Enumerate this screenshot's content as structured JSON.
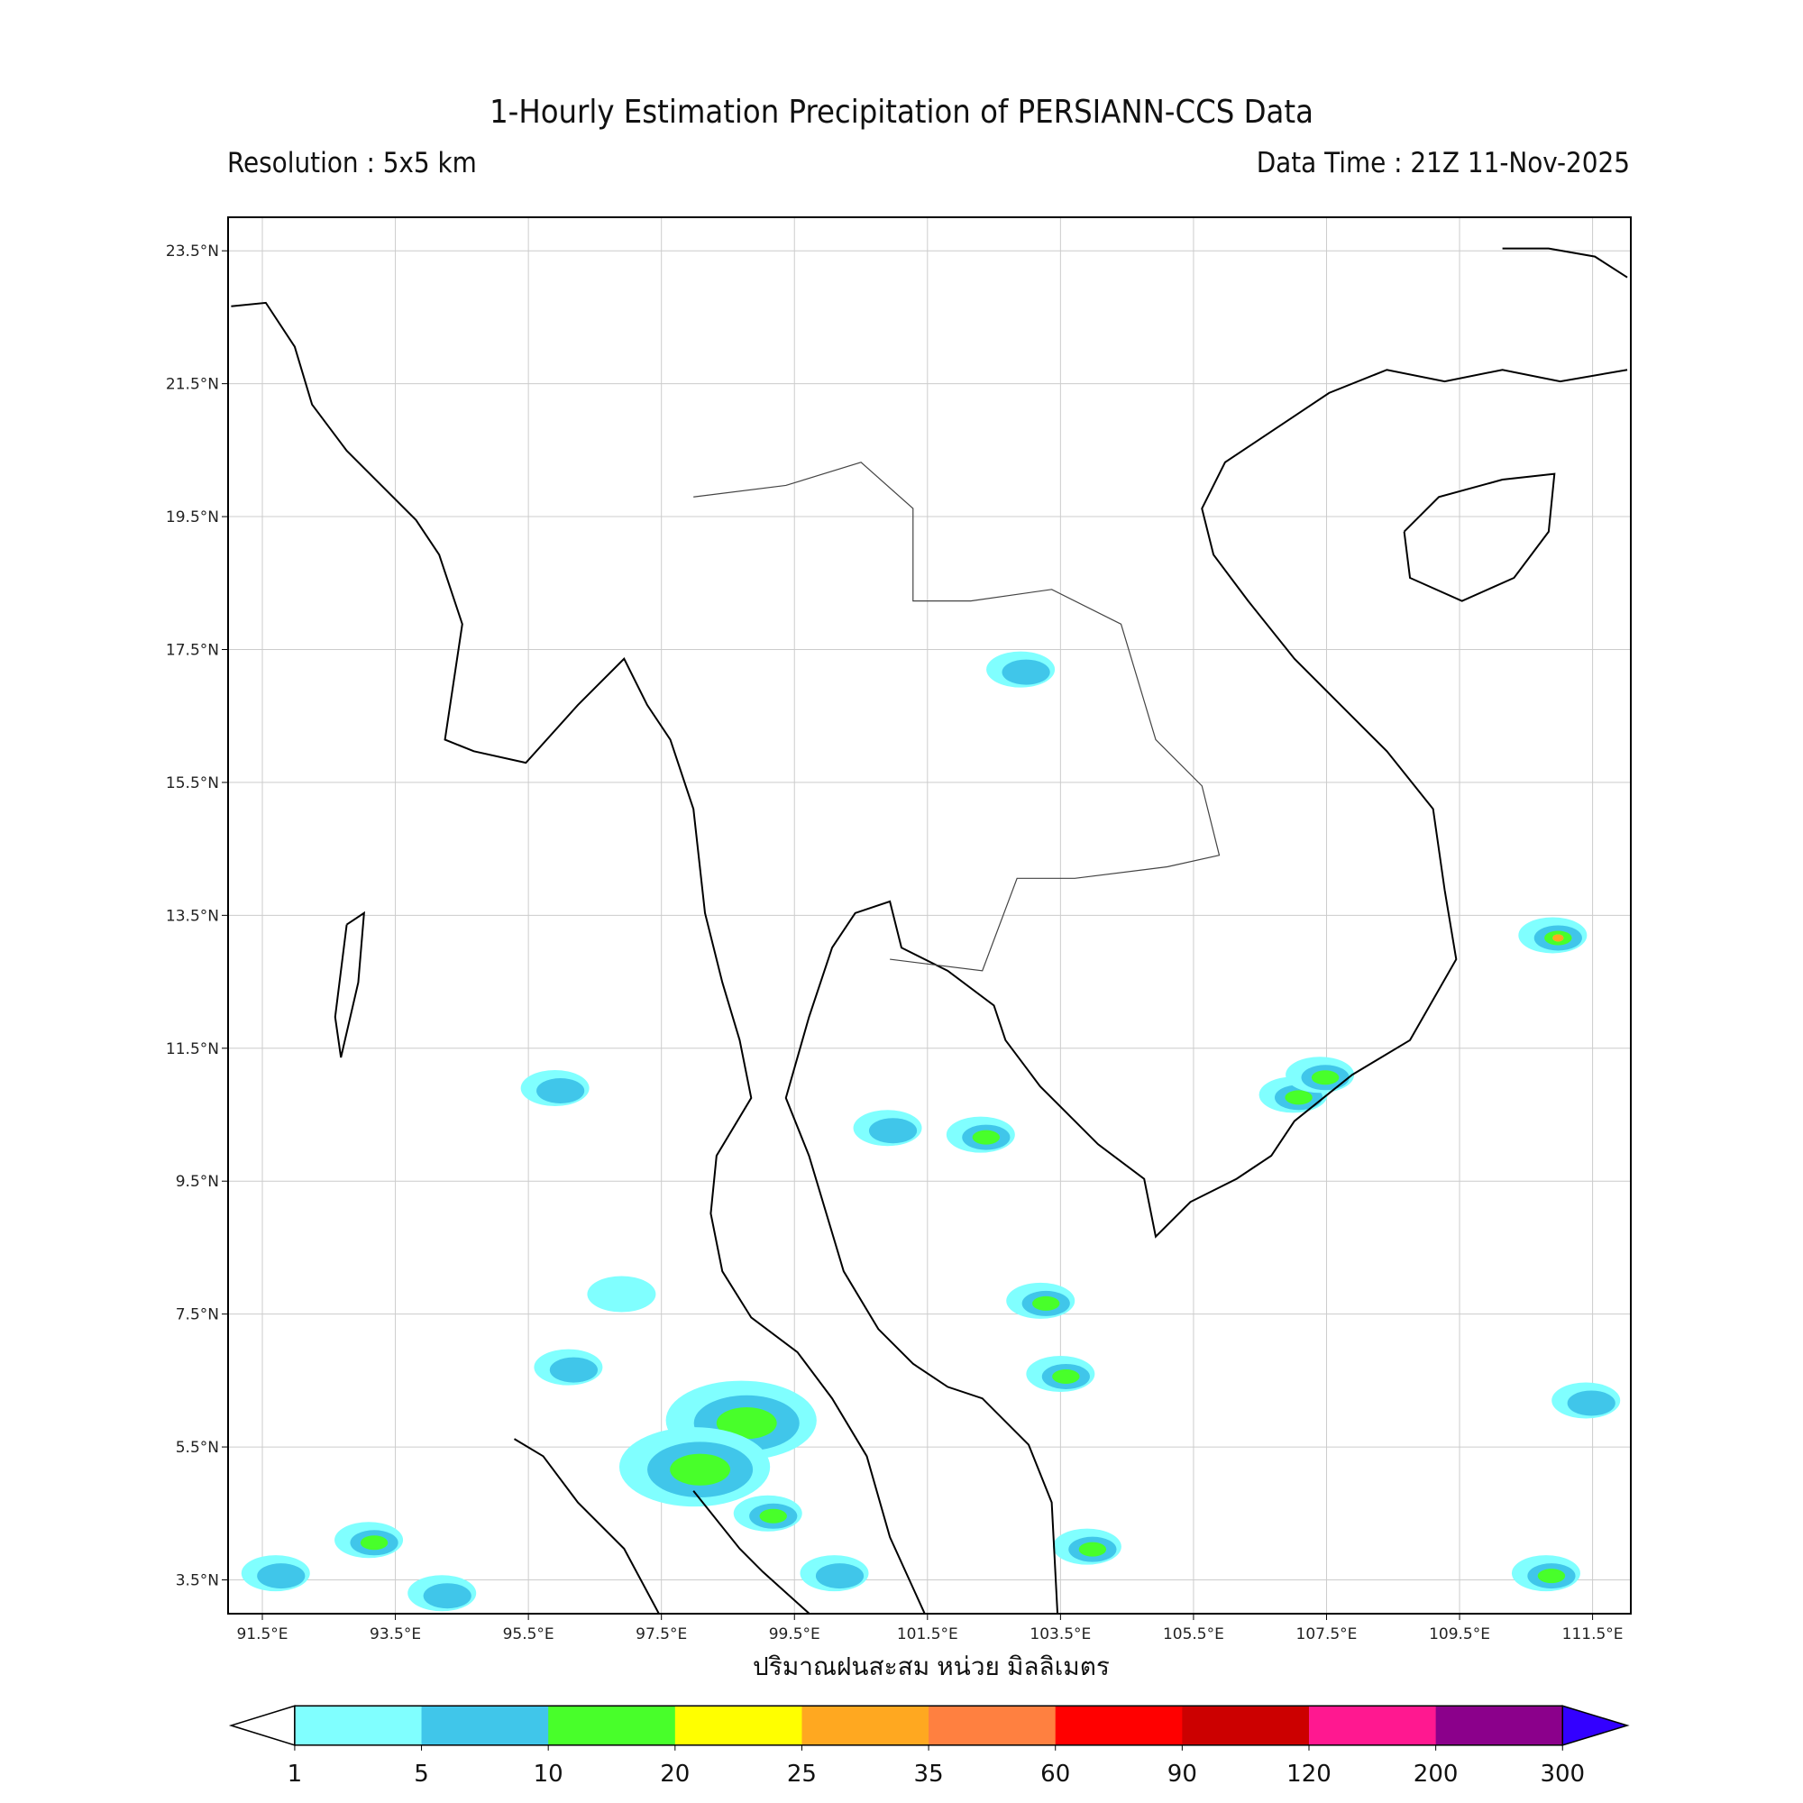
{
  "header": {
    "title": "1-Hourly Estimation Precipitation of PERSIANN-CCS Data",
    "resolution": "Resolution : 5x5 km",
    "data_time": "Data Time : 21Z 11-Nov-2025"
  },
  "chart_data": {
    "type": "heatmap",
    "title": "1-Hourly Estimation Precipitation of PERSIANN-CCS Data",
    "xlabel": "ปริมาณฝนสะสม หน่วย มิลลิเมตร",
    "lon_range": [
      91.0,
      112.1
    ],
    "lat_range": [
      3.0,
      24.0
    ],
    "grid": true,
    "lon_ticks": [
      "91.5°E",
      "93.5°E",
      "95.5°E",
      "97.5°E",
      "99.5°E",
      "101.5°E",
      "103.5°E",
      "105.5°E",
      "107.5°E",
      "109.5°E",
      "111.5°E"
    ],
    "lon_tick_values": [
      91.5,
      93.5,
      95.5,
      97.5,
      99.5,
      101.5,
      103.5,
      105.5,
      107.5,
      109.5,
      111.5
    ],
    "lat_ticks": [
      "23.5°N",
      "21.5°N",
      "19.5°N",
      "17.5°N",
      "15.5°N",
      "13.5°N",
      "11.5°N",
      "9.5°N",
      "7.5°N",
      "5.5°N",
      "3.5°N"
    ],
    "lat_tick_values": [
      23.5,
      21.5,
      19.5,
      17.5,
      15.5,
      13.5,
      11.5,
      9.5,
      7.5,
      5.5,
      3.5
    ],
    "colorbar": {
      "levels": [
        "1",
        "5",
        "10",
        "20",
        "25",
        "35",
        "60",
        "90",
        "120",
        "200",
        "300"
      ],
      "colors": [
        "#80ffff",
        "#40c6ea",
        "#48ff2a",
        "#ffff00",
        "#ffa820",
        "#ff8040",
        "#ff0000",
        "#cc0000",
        "#ff1890",
        "#8b008b"
      ],
      "over_color": "#3300ff",
      "under_color": "#ffffff"
    },
    "precip_cells": [
      {
        "lon": 98.7,
        "lat": 5.9,
        "max_class": 2
      },
      {
        "lon": 98.0,
        "lat": 5.2,
        "max_class": 2
      },
      {
        "lon": 99.1,
        "lat": 4.5,
        "max_class": 2
      },
      {
        "lon": 100.1,
        "lat": 3.6,
        "max_class": 1
      },
      {
        "lon": 107.0,
        "lat": 10.8,
        "max_class": 2
      },
      {
        "lon": 107.4,
        "lat": 11.1,
        "max_class": 2
      },
      {
        "lon": 102.3,
        "lat": 10.2,
        "max_class": 2
      },
      {
        "lon": 100.9,
        "lat": 10.3,
        "max_class": 1
      },
      {
        "lon": 91.7,
        "lat": 3.6,
        "max_class": 1
      },
      {
        "lon": 94.2,
        "lat": 3.3,
        "max_class": 1
      },
      {
        "lon": 93.1,
        "lat": 4.1,
        "max_class": 2
      },
      {
        "lon": 111.4,
        "lat": 6.2,
        "max_class": 1
      },
      {
        "lon": 110.8,
        "lat": 3.6,
        "max_class": 2
      },
      {
        "lon": 103.9,
        "lat": 4.0,
        "max_class": 2
      },
      {
        "lon": 103.2,
        "lat": 7.7,
        "max_class": 2
      },
      {
        "lon": 103.5,
        "lat": 6.6,
        "max_class": 2
      },
      {
        "lon": 96.9,
        "lat": 7.8,
        "max_class": 0
      },
      {
        "lon": 96.1,
        "lat": 6.7,
        "max_class": 1
      },
      {
        "lon": 110.9,
        "lat": 13.2,
        "max_class": 4
      },
      {
        "lon": 102.9,
        "lat": 17.2,
        "max_class": 1
      },
      {
        "lon": 95.9,
        "lat": 10.9,
        "max_class": 1
      }
    ]
  }
}
